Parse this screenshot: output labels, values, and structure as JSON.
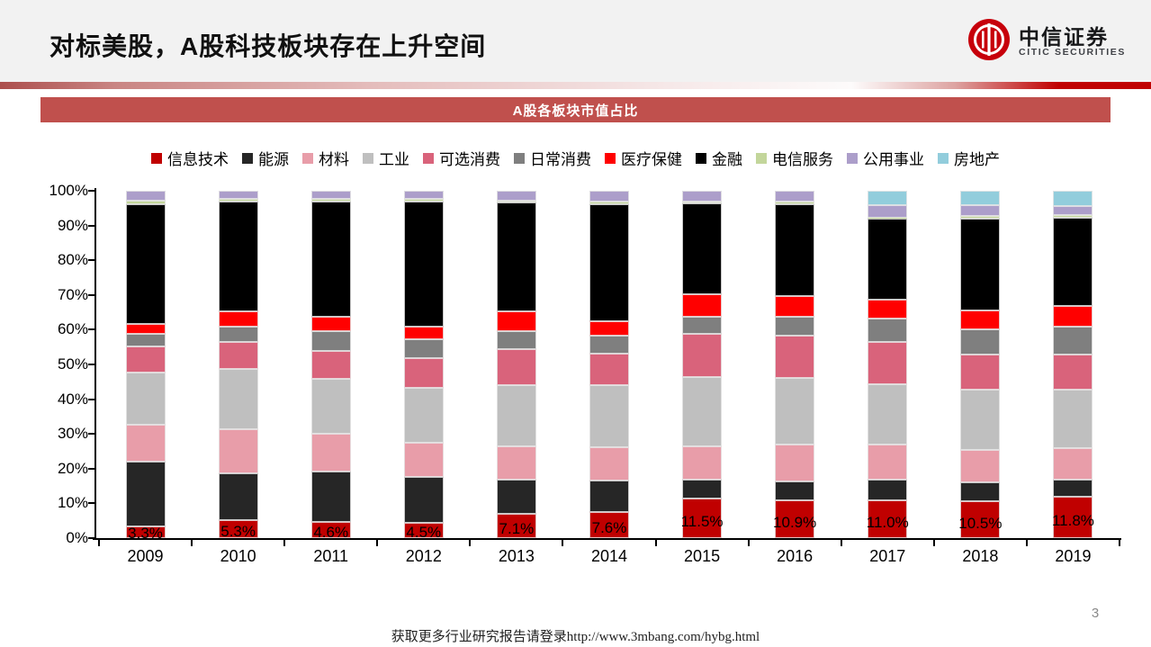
{
  "header": {
    "title": "对标美股，A股科技板块存在上升空间",
    "logo": {
      "cn": "中信证券",
      "en": "CITIC SECURITIES",
      "brand_red": "#C7000B"
    }
  },
  "banner": {
    "text": "A股各板块市值占比",
    "bg_color": "#C0504D"
  },
  "chart_data": {
    "type": "bar",
    "stacked": true,
    "title": "A股各板块市值占比",
    "xlabel": "",
    "ylabel": "",
    "ylim": [
      0,
      100
    ],
    "grid": false,
    "legend_position": "top",
    "y_ticks": [
      "100%",
      "90%",
      "80%",
      "70%",
      "60%",
      "50%",
      "40%",
      "30%",
      "20%",
      "10%",
      "0%"
    ],
    "categories": [
      "2009",
      "2010",
      "2011",
      "2012",
      "2013",
      "2014",
      "2015",
      "2016",
      "2017",
      "2018",
      "2019"
    ],
    "series": [
      {
        "name": "信息技术",
        "color": "#C00000",
        "values": [
          3.3,
          5.3,
          4.6,
          4.5,
          7.1,
          7.6,
          11.5,
          10.9,
          11.0,
          10.5,
          11.8
        ]
      },
      {
        "name": "能源",
        "color": "#262626",
        "values": [
          18.6,
          13.4,
          14.5,
          13.1,
          9.7,
          8.9,
          5.3,
          5.4,
          5.8,
          5.6,
          5.0
        ]
      },
      {
        "name": "材料",
        "color": "#E89DA9",
        "values": [
          10.8,
          12.7,
          11.0,
          9.9,
          9.6,
          9.7,
          9.6,
          10.6,
          10.1,
          9.3,
          9.2
        ]
      },
      {
        "name": "工业",
        "color": "#BFBFBF",
        "values": [
          15.1,
          17.3,
          15.8,
          15.8,
          17.6,
          17.8,
          19.9,
          19.2,
          17.5,
          17.3,
          16.7
        ]
      },
      {
        "name": "可选消费",
        "color": "#D9637B",
        "values": [
          7.4,
          7.8,
          8.0,
          8.4,
          10.3,
          9.2,
          12.6,
          12.3,
          12.1,
          10.1,
          10.1
        ]
      },
      {
        "name": "日常消费",
        "color": "#7F7F7F",
        "values": [
          3.6,
          4.5,
          5.6,
          5.5,
          5.2,
          5.0,
          4.9,
          5.4,
          6.7,
          7.4,
          8.0
        ]
      },
      {
        "name": "医疗保健",
        "color": "#FF0000",
        "values": [
          2.9,
          4.4,
          4.3,
          3.8,
          5.9,
          4.3,
          6.3,
          5.8,
          5.4,
          5.3,
          6.0
        ]
      },
      {
        "name": "金融",
        "color": "#000000",
        "values": [
          34.5,
          31.6,
          33.1,
          35.9,
          31.2,
          33.7,
          26.3,
          26.6,
          23.3,
          26.6,
          25.5
        ]
      },
      {
        "name": "电信服务",
        "color": "#C3D69B",
        "values": [
          1.0,
          0.7,
          0.8,
          0.8,
          0.6,
          0.8,
          0.5,
          0.7,
          0.4,
          0.6,
          0.6
        ]
      },
      {
        "name": "公用事业",
        "color": "#AC9ECA",
        "values": [
          2.8,
          2.3,
          2.3,
          2.3,
          2.8,
          3.0,
          3.1,
          3.1,
          3.5,
          3.1,
          2.6
        ]
      },
      {
        "name": "房地产",
        "color": "#92CDDC",
        "values": [
          0,
          0,
          0,
          0,
          0,
          0,
          0,
          0,
          4.2,
          4.2,
          4.5
        ]
      }
    ],
    "data_labels": {
      "series": "信息技术",
      "values": [
        "3.3%",
        "5.3%",
        "4.6%",
        "4.5%",
        "7.1%",
        "7.6%",
        "11.5%",
        "10.9%",
        "11.0%",
        "10.5%",
        "11.8%"
      ]
    }
  },
  "footer": {
    "note": "获取更多行业研究报告请登录http://www.3mbang.com/hybg.html",
    "page": "3"
  }
}
